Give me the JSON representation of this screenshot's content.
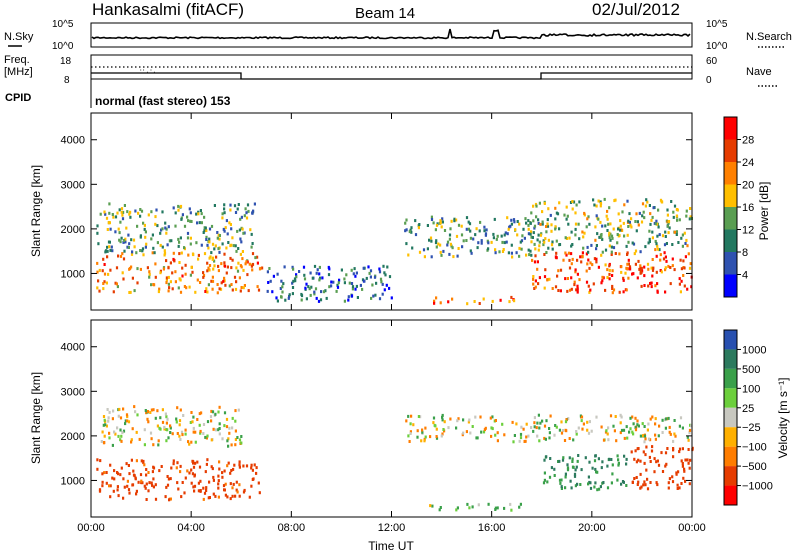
{
  "header": {
    "station": "Hankasalmi (fitACF)",
    "beam": "Beam 14",
    "date": "02/Jul/2012"
  },
  "top_panels": {
    "nsky_label": "N.Sky",
    "nsearch_label": "N.Search",
    "nsky_ticks": [
      "10^5",
      "10^0"
    ],
    "nsearch_ticks": [
      "10^5",
      "10^0"
    ],
    "freq_label_1": "Freq.",
    "freq_label_2": "[MHz]",
    "freq_ticks": [
      "18",
      "8"
    ],
    "nave_ticks": [
      "60",
      "0"
    ],
    "nave_label": "Nave",
    "cpid_label": "CPID",
    "cpid_text": "normal (fast stereo) 153"
  },
  "chart_data": [
    {
      "type": "heatmap",
      "name": "power",
      "ylabel": "Slant Range [km]",
      "yticks": [
        1000,
        2000,
        3000,
        4000
      ],
      "ylim": [
        180,
        4600
      ],
      "xticks": [
        "00:00",
        "04:00",
        "08:00",
        "12:00",
        "16:00",
        "20:00",
        "00:00"
      ],
      "xlim_hours": [
        0,
        24
      ],
      "colorbar": {
        "label": "Power [dB]",
        "ticks": [
          "28",
          "24",
          "20",
          "16",
          "12",
          "8",
          "4"
        ],
        "colors": [
          "#ff0000",
          "#e63c00",
          "#ff8000",
          "#ffbf00",
          "#5a9e52",
          "#227860",
          "#2f52b0",
          "#0000ff"
        ]
      },
      "echo_regions": [
        {
          "h0": 0.2,
          "h1": 6.8,
          "r0": 600,
          "r1": 1500,
          "db": 22
        },
        {
          "h0": 0.2,
          "h1": 6.5,
          "r0": 1500,
          "r1": 2600,
          "db": 12
        },
        {
          "h0": 7.0,
          "h1": 12.0,
          "r0": 400,
          "r1": 1200,
          "db": 8
        },
        {
          "h0": 13.0,
          "h1": 17.0,
          "r0": 350,
          "r1": 500,
          "db": 24
        },
        {
          "h0": 12.5,
          "h1": 18.0,
          "r0": 1400,
          "r1": 2300,
          "db": 12
        },
        {
          "h0": 17.5,
          "h1": 24.0,
          "r0": 600,
          "r1": 1500,
          "db": 26
        },
        {
          "h0": 17.5,
          "h1": 24.0,
          "r0": 1500,
          "r1": 2700,
          "db": 14
        }
      ]
    },
    {
      "type": "heatmap",
      "name": "velocity",
      "ylabel": "Slant Range [km]",
      "yticks": [
        1000,
        2000,
        3000,
        4000
      ],
      "ylim": [
        180,
        4600
      ],
      "xticks": [
        "00:00",
        "04:00",
        "08:00",
        "12:00",
        "16:00",
        "20:00",
        "00:00"
      ],
      "xlabel": "Time UT",
      "colorbar": {
        "label": "Velocity [m s⁻¹]",
        "ticks": [
          "1000",
          "500",
          "100",
          "25",
          "−25",
          "−100",
          "−500",
          "−1000"
        ],
        "colors": [
          "#2850b0",
          "#2c7a5e",
          "#3aa04a",
          "#6ccf3c",
          "#c8c8c0",
          "#ffb000",
          "#ff7d00",
          "#e63c00",
          "#ff0000"
        ]
      },
      "echo_regions": [
        {
          "h0": 0.2,
          "h1": 6.8,
          "r0": 600,
          "r1": 1500,
          "v": -400
        },
        {
          "h0": 0.3,
          "h1": 6.0,
          "r0": 1800,
          "r1": 2700,
          "v": 0
        },
        {
          "h0": 13.5,
          "h1": 17.5,
          "r0": 350,
          "r1": 500,
          "v": 120
        },
        {
          "h0": 12.5,
          "h1": 24.0,
          "r0": 1900,
          "r1": 2500,
          "v": 0
        },
        {
          "h0": 18.0,
          "h1": 21.5,
          "r0": 800,
          "r1": 1600,
          "v": 300
        },
        {
          "h0": 21.5,
          "h1": 24.0,
          "r0": 800,
          "r1": 1800,
          "v": -450
        }
      ]
    }
  ]
}
